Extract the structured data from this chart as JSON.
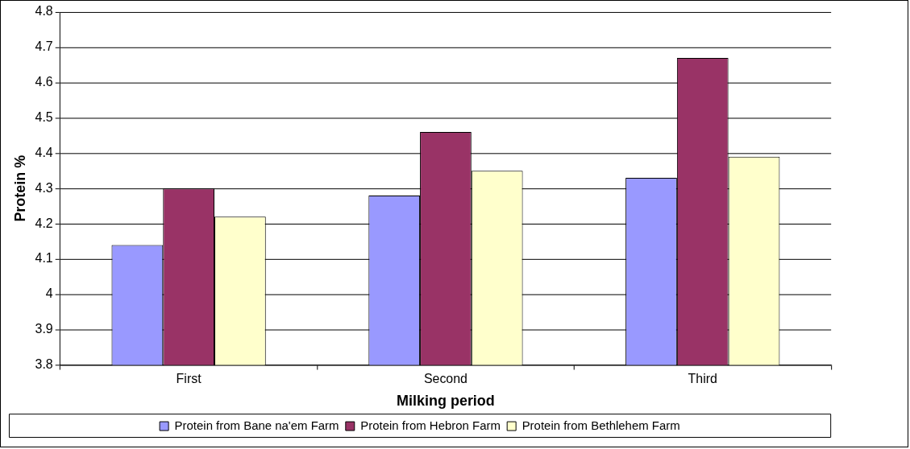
{
  "chart_data": {
    "type": "bar",
    "xlabel": "Milking period",
    "ylabel": "Protein %",
    "categories": [
      "First",
      "Second",
      "Third"
    ],
    "series": [
      {
        "name": "Protein from Bane na'em Farm",
        "color": "#9999ff",
        "values": [
          4.14,
          4.28,
          4.33
        ]
      },
      {
        "name": "Protein from Hebron Farm",
        "color": "#993366",
        "values": [
          4.3,
          4.46,
          4.67
        ]
      },
      {
        "name": "Protein from Bethlehem Farm",
        "color": "#ffffcc",
        "values": [
          4.22,
          4.35,
          4.39
        ]
      }
    ],
    "ylim": [
      3.8,
      4.8
    ],
    "yticks": [
      3.8,
      3.9,
      4,
      4.1,
      4.2,
      4.3,
      4.4,
      4.5,
      4.6,
      4.7,
      4.8
    ],
    "grid": "y",
    "legend": "bottom"
  }
}
